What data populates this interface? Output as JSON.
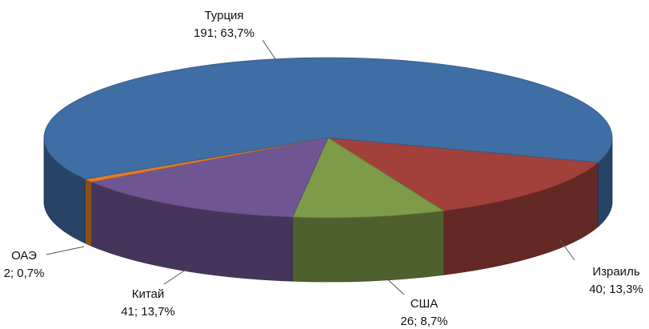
{
  "chart_data": {
    "type": "pie3d",
    "categories": [
      "Израиль",
      "США",
      "Китай",
      "ОАЭ",
      "Турция"
    ],
    "values": [
      40,
      26,
      41,
      2,
      191
    ],
    "value_labels": [
      "40; 13,3%",
      "26; 8,7%",
      "41; 13,7%",
      "2; 0,7%",
      "191; 63,7%"
    ],
    "colors": [
      "#a2403c",
      "#7d9b48",
      "#6f5692",
      "#e07c2c",
      "#3f6ea4"
    ]
  }
}
